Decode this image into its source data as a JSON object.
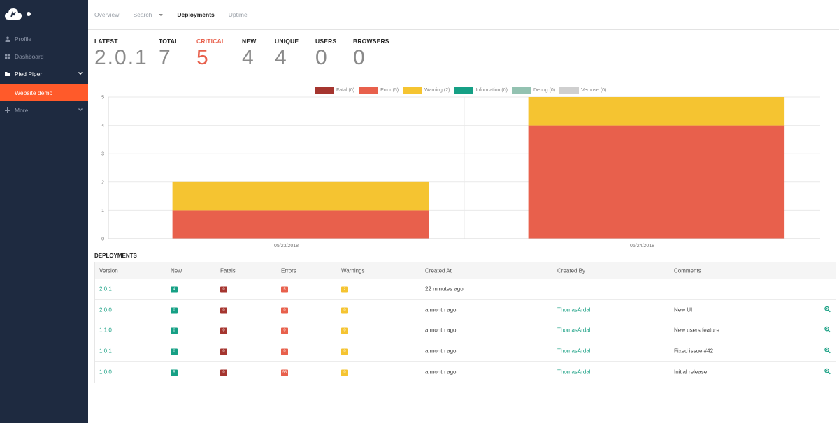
{
  "sidebar": {
    "items": [
      {
        "label": "Profile",
        "icon": "user-icon"
      },
      {
        "label": "Dashboard",
        "icon": "grid-icon"
      },
      {
        "label": "Pied Piper",
        "icon": "folder-icon"
      },
      {
        "label": "More...",
        "icon": "plus-icon"
      }
    ],
    "sub_item": "Website demo"
  },
  "topnav": {
    "tabs": [
      "Overview",
      "Search",
      "Deployments",
      "Uptime"
    ],
    "active": "Deployments"
  },
  "stats": [
    {
      "label": "LATEST",
      "value": "2.0.1"
    },
    {
      "label": "TOTAL",
      "value": "7"
    },
    {
      "label": "CRITICAL",
      "value": "5"
    },
    {
      "label": "NEW",
      "value": "4"
    },
    {
      "label": "UNIQUE",
      "value": "4"
    },
    {
      "label": "USERS",
      "value": "0"
    },
    {
      "label": "BROWSERS",
      "value": "0"
    }
  ],
  "colors": {
    "fatal": "#a5352f",
    "error": "#e8604c",
    "warning": "#f5c431",
    "information": "#16a085",
    "debug": "#93c2b1",
    "verbose": "#cfcfcf",
    "accent": "#ff5a2a",
    "sidebar": "#1e2a40"
  },
  "chart_data": {
    "type": "bar",
    "stacked": true,
    "categories": [
      "05/23/2018",
      "05/24/2018"
    ],
    "series": [
      {
        "name": "Fatal (0)",
        "values": [
          0,
          0
        ]
      },
      {
        "name": "Error (5)",
        "values": [
          1,
          4
        ]
      },
      {
        "name": "Warning (2)",
        "values": [
          1,
          1
        ]
      },
      {
        "name": "Information (0)",
        "values": [
          0,
          0
        ]
      },
      {
        "name": "Debug (0)",
        "values": [
          0,
          0
        ]
      },
      {
        "name": "Verbose (0)",
        "values": [
          0,
          0
        ]
      }
    ],
    "ylim": [
      0,
      5
    ],
    "yticks": [
      "0",
      "1",
      "2",
      "3",
      "4",
      "5"
    ],
    "legend": "top-center",
    "grid": true
  },
  "deployments": {
    "title": "DEPLOYMENTS",
    "columns": [
      "Version",
      "New",
      "Fatals",
      "Errors",
      "Warnings",
      "Created At",
      "Created By",
      "Comments"
    ],
    "rows": [
      {
        "version": "2.0.1",
        "new": "4",
        "fatals": "0",
        "errors": "5",
        "warnings": "2",
        "created_at": "22 minutes ago",
        "created_by": "",
        "comments": "",
        "details": false
      },
      {
        "version": "2.0.0",
        "new": "0",
        "fatals": "0",
        "errors": "0",
        "warnings": "0",
        "created_at": "a month ago",
        "created_by": "ThomasArdal",
        "comments": "New UI",
        "details": true
      },
      {
        "version": "1.1.0",
        "new": "0",
        "fatals": "0",
        "errors": "0",
        "warnings": "0",
        "created_at": "a month ago",
        "created_by": "ThomasArdal",
        "comments": "New users feature",
        "details": true
      },
      {
        "version": "1.0.1",
        "new": "0",
        "fatals": "0",
        "errors": "0",
        "warnings": "0",
        "created_at": "a month ago",
        "created_by": "ThomasArdal",
        "comments": "Fixed issue #42",
        "details": true
      },
      {
        "version": "1.0.0",
        "new": "5",
        "fatals": "0",
        "errors": "98",
        "warnings": "0",
        "created_at": "a month ago",
        "created_by": "ThomasArdal",
        "comments": "Initial release",
        "details": true
      }
    ]
  }
}
